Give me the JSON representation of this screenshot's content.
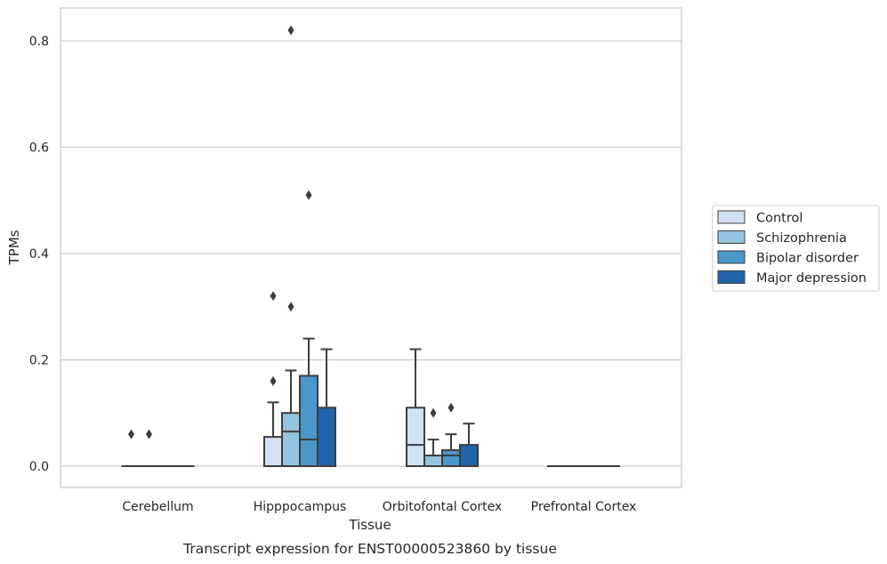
{
  "caption": "Transcript expression for ENST00000523860 by tissue",
  "chart_data": {
    "type": "box",
    "xlabel": "Tissue",
    "ylabel": "TPMs",
    "ylim": [
      -0.04,
      0.86
    ],
    "yticks": [
      0.0,
      0.2,
      0.4,
      0.6,
      0.8
    ],
    "ytick_labels": [
      "0.0",
      "0.2",
      "0.4",
      "0.6",
      "0.8"
    ],
    "grid": true,
    "legend_position": "right",
    "categories": [
      "Cerebellum",
      "Hipppocampus",
      "Orbitofontal Cortex",
      "Prefrontal Cortex"
    ],
    "series": [
      {
        "name": "Control",
        "color": "#d0e1f2",
        "boxes": [
          {
            "q1": 0,
            "median": 0,
            "q3": 0,
            "whislo": 0,
            "whishi": 0,
            "fliers": [
              0.06
            ]
          },
          {
            "q1": 0,
            "median": 0,
            "q3": 0.055,
            "whislo": 0,
            "whishi": 0.12,
            "fliers": [
              0.16,
              0.32
            ]
          },
          {
            "q1": 0,
            "median": 0.04,
            "q3": 0.11,
            "whislo": 0,
            "whishi": 0.22,
            "fliers": []
          },
          {
            "q1": 0,
            "median": 0,
            "q3": 0,
            "whislo": 0,
            "whishi": 0,
            "fliers": []
          }
        ]
      },
      {
        "name": "Schizophrenia",
        "color": "#94c4df",
        "boxes": [
          {
            "q1": 0,
            "median": 0,
            "q3": 0,
            "whislo": 0,
            "whishi": 0,
            "fliers": [
              0.06
            ]
          },
          {
            "q1": 0,
            "median": 0.065,
            "q3": 0.1,
            "whislo": 0,
            "whishi": 0.18,
            "fliers": [
              0.3,
              0.82
            ]
          },
          {
            "q1": 0,
            "median": 0,
            "q3": 0.02,
            "whislo": 0,
            "whishi": 0.05,
            "fliers": [
              0.1
            ]
          },
          {
            "q1": 0,
            "median": 0,
            "q3": 0,
            "whislo": 0,
            "whishi": 0,
            "fliers": []
          }
        ]
      },
      {
        "name": "Bipolar disorder",
        "color": "#4a98c9",
        "boxes": [
          {
            "q1": 0,
            "median": 0,
            "q3": 0,
            "whislo": 0,
            "whishi": 0,
            "fliers": []
          },
          {
            "q1": 0,
            "median": 0.05,
            "q3": 0.17,
            "whislo": 0,
            "whishi": 0.24,
            "fliers": [
              0.51
            ]
          },
          {
            "q1": 0,
            "median": 0.02,
            "q3": 0.03,
            "whislo": 0,
            "whishi": 0.06,
            "fliers": [
              0.11
            ]
          },
          {
            "q1": 0,
            "median": 0,
            "q3": 0,
            "whislo": 0,
            "whishi": 0,
            "fliers": []
          }
        ]
      },
      {
        "name": "Major depression",
        "color": "#2164ab",
        "boxes": [
          {
            "q1": 0,
            "median": 0,
            "q3": 0,
            "whislo": 0,
            "whishi": 0,
            "fliers": []
          },
          {
            "q1": 0,
            "median": 0,
            "q3": 0.11,
            "whislo": 0,
            "whishi": 0.22,
            "fliers": []
          },
          {
            "q1": 0,
            "median": 0,
            "q3": 0.04,
            "whislo": 0,
            "whishi": 0.08,
            "fliers": []
          },
          {
            "q1": 0,
            "median": 0,
            "q3": 0,
            "whislo": 0,
            "whishi": 0,
            "fliers": []
          }
        ]
      }
    ]
  }
}
